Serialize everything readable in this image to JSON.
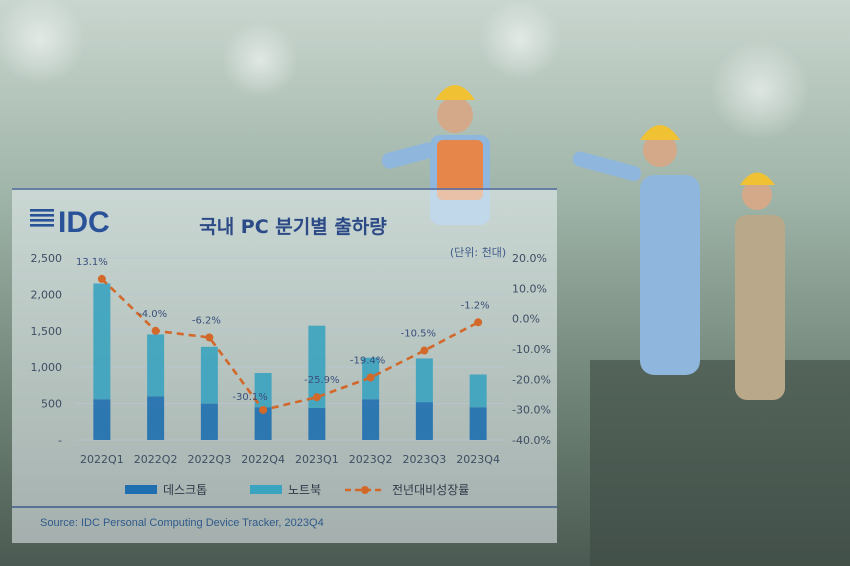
{
  "logo": "IDC",
  "chart_data": {
    "type": "bar",
    "title": "국내 PC 분기별 출하량",
    "unit": "(단위: 천대)",
    "categories": [
      "2022Q1",
      "2022Q2",
      "2022Q3",
      "2022Q4",
      "2023Q1",
      "2023Q2",
      "2023Q3",
      "2023Q4"
    ],
    "series": [
      {
        "name": "데스크톱",
        "type": "bar",
        "color": "#1f6fb0",
        "values": [
          560,
          600,
          500,
          450,
          440,
          560,
          520,
          450
        ]
      },
      {
        "name": "노트북",
        "type": "bar",
        "color": "#3aa3bf",
        "values": [
          1590,
          850,
          780,
          470,
          1130,
          570,
          600,
          450
        ]
      },
      {
        "name": "전년대비성장률",
        "type": "line",
        "axis": "right",
        "color": "#d2692b",
        "values": [
          13.1,
          -4.0,
          -6.2,
          -30.1,
          -25.9,
          -19.4,
          -10.5,
          -1.2
        ],
        "labels": [
          "13.1%",
          "-4.0%",
          "-6.2%",
          "-30.1%",
          "-25.9%",
          "-19.4%",
          "-10.5%",
          "-1.2%"
        ]
      }
    ],
    "y_left": {
      "ticks": [
        "-",
        "500",
        "1,000",
        "1,500",
        "2,000",
        "2,500"
      ],
      "range": [
        0,
        2500
      ]
    },
    "y_right": {
      "ticks": [
        "-40.0%",
        "-30.0%",
        "-20.0%",
        "-10.0%",
        "0.0%",
        "10.0%",
        "20.0%"
      ],
      "range": [
        -40,
        20
      ]
    },
    "legend_position": "bottom",
    "source": "Source: IDC Personal Computing Device Tracker, 2023Q4"
  }
}
